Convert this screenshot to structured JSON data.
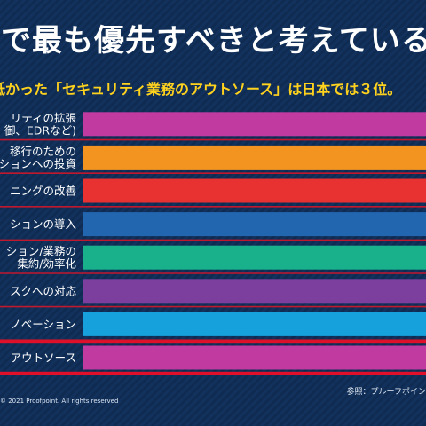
{
  "header": {
    "title": "可で最も優先すべきと考えている事",
    "subtitle": "低かった「セキュリティ業務のアウトソース」は日本では３位。"
  },
  "chart_data": {
    "type": "bar",
    "orientation": "horizontal",
    "categories": [
      [
        "リティの拡張",
        "御、EDRなど)"
      ],
      [
        "移行のための",
        "ションへの投資"
      ],
      [
        "ニングの改善"
      ],
      [
        "ションの導入"
      ],
      [
        "ション/業務の",
        "集約/効率化"
      ],
      [
        "スクへの対応"
      ],
      [
        "ノベーション"
      ],
      [
        "アウトソース"
      ]
    ],
    "colors": [
      "#c13aa0",
      "#f39421",
      "#e83232",
      "#2266b0",
      "#19b08c",
      "#7d3f9e",
      "#16a0dc",
      "#c13aa0"
    ],
    "highlight_index": 7,
    "highlight_color": "#e0102a",
    "separator_color": "#c2182e"
  },
  "footer": {
    "copyright": "© 2021  Proofpoint.  All rights reserved",
    "source": "参照：プルーフポイン"
  }
}
